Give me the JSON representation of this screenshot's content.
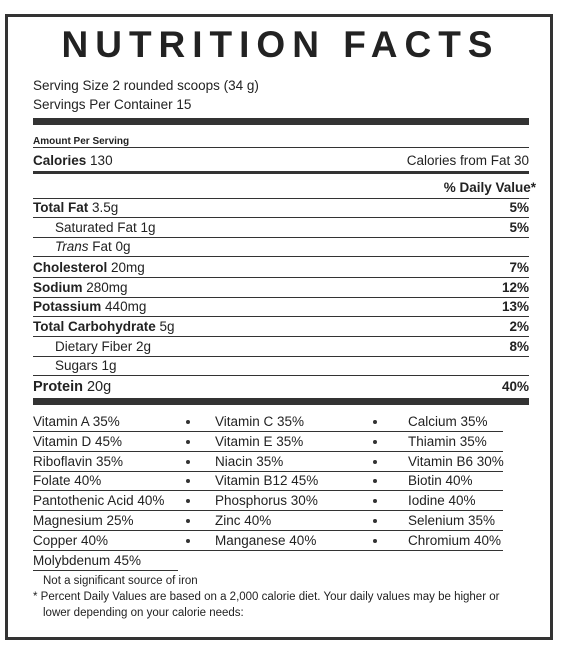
{
  "header": {
    "title": "NUTRITION FACTS",
    "serving_size": "Serving Size 2 rounded scoops (34 g)",
    "servings_per_container": "Servings Per Container 15"
  },
  "amount_per_serving": "Amount Per Serving",
  "calories": {
    "label": "Calories",
    "amount": "130",
    "from_fat": "Calories from Fat 30"
  },
  "daily_value_header": "% Daily Value*",
  "nutrients": [
    {
      "label": "Total Fat",
      "amount": "3.5g",
      "dv": "5%",
      "bold": true
    },
    {
      "label": "Saturated Fat 1g",
      "dv": "5%",
      "indent": true
    },
    {
      "label": "Trans",
      "amount": "Fat 0g",
      "italic": true,
      "indent": true
    },
    {
      "label": "Cholesterol",
      "amount": "20mg",
      "dv": "7%",
      "bold": true
    },
    {
      "label": "Sodium",
      "amount": "280mg",
      "dv": "12%",
      "bold": true
    },
    {
      "label": "Potassium",
      "amount": "440mg",
      "dv": "13%",
      "bold": true
    },
    {
      "label": "Total Carbohydrate",
      "amount": "5g",
      "dv": "2%",
      "bold": true
    },
    {
      "label": "Dietary Fiber 2g",
      "dv": "8%",
      "indent": true
    },
    {
      "label": "Sugars 1g",
      "indent": true
    },
    {
      "label": "Protein",
      "amount": "20g",
      "dv": "40%",
      "bold": true
    }
  ],
  "vitamins": [
    [
      "Vitamin A 35%",
      "Vitamin C 35%",
      "Calcium 35%"
    ],
    [
      "Vitamin D 45%",
      "Vitamin E 35%",
      "Thiamin 35%"
    ],
    [
      "Riboflavin 35%",
      "Niacin 35%",
      "Vitamin B6 30%"
    ],
    [
      "Folate 40%",
      "Vitamin B12 45%",
      "Biotin 40%"
    ],
    [
      "Pantothenic Acid 40%",
      "Phosphorus 30%",
      "Iodine 40%"
    ],
    [
      "Magnesium 25%",
      "Zinc 40%",
      "Selenium 35%"
    ],
    [
      "Copper 40%",
      "Manganese 40%",
      "Chromium 40%"
    ],
    [
      "Molybdenum 45%"
    ]
  ],
  "footnotes": [
    "Not a significant source of iron",
    "* Percent Daily Values are based on a 2,000 calorie diet. Your daily values may be higher or",
    "lower depending on your calorie needs:"
  ]
}
